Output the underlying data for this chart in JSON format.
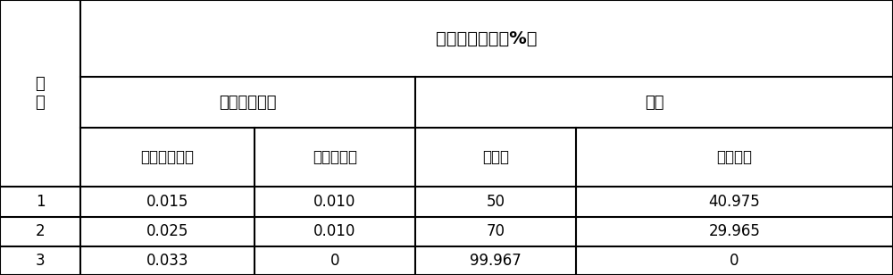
{
  "title_main": "组分加入比例（%）",
  "header_left": "编\n号",
  "header_organic": "有机高粘材料",
  "header_carrier": "载体",
  "col1": "羧甲基纤维素",
  "col2": "水溶性树脂",
  "col3": "水镁石",
  "col4": "轻烧镁粉",
  "rows": [
    [
      "1",
      "0.015",
      "0.010",
      "50",
      "40.975"
    ],
    [
      "2",
      "0.025",
      "0.010",
      "70",
      "29.965"
    ],
    [
      "3",
      "0.033",
      "0",
      "99.967",
      "0"
    ]
  ],
  "bg_color": "#ffffff",
  "line_color": "#000000",
  "font_size": 12,
  "font_size_header": 13
}
